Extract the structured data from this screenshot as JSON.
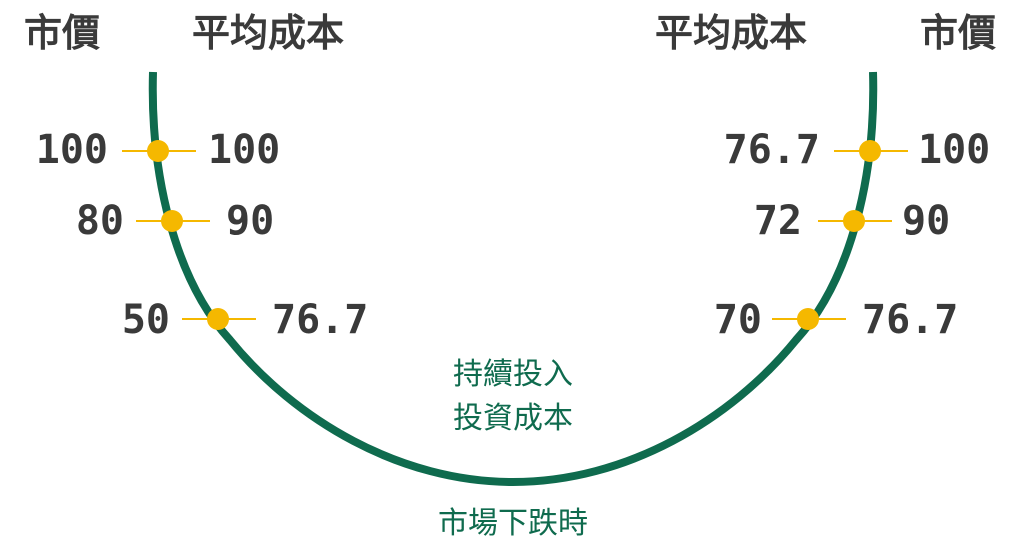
{
  "colors": {
    "curve": "#0f6b4e",
    "marker": "#f5b800",
    "text": "#3a3a3a",
    "caption": "#0f6b4e"
  },
  "left_headers": {
    "market_price": "市價",
    "average_cost": "平均成本"
  },
  "right_headers": {
    "average_cost": "平均成本",
    "market_price": "市價"
  },
  "left_points": [
    {
      "market_price": "100",
      "average_cost": "100"
    },
    {
      "market_price": "80",
      "average_cost": "90"
    },
    {
      "market_price": "50",
      "average_cost": "76.7"
    }
  ],
  "right_points": [
    {
      "average_cost": "76.7",
      "market_price": "100"
    },
    {
      "average_cost": "72",
      "market_price": "90"
    },
    {
      "average_cost": "70",
      "market_price": "76.7"
    }
  ],
  "inner_caption": {
    "line1": "持續投入",
    "line2": "投資成本"
  },
  "bottom_caption": "市場下跌時"
}
